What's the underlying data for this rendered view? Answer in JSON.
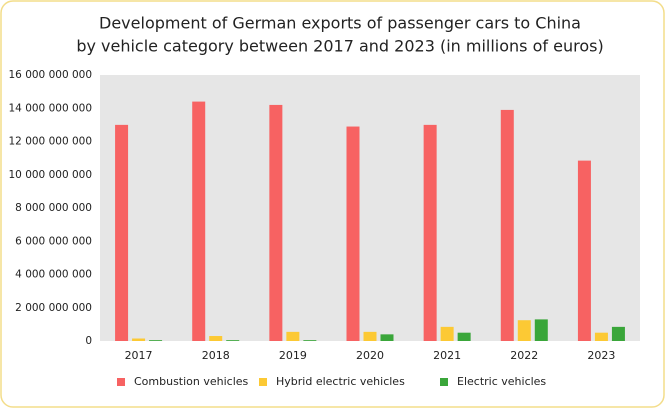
{
  "chart_data": {
    "type": "bar",
    "title": [
      "Development of German exports of passenger cars to China",
      "by vehicle category between 2017 and 2023 (in millions of euros)"
    ],
    "categories": [
      "2017",
      "2018",
      "2019",
      "2020",
      "2021",
      "2022",
      "2023"
    ],
    "series": [
      {
        "name": "Combustion vehicles",
        "color": "#f76262",
        "values": [
          13000000000,
          14400000000,
          14200000000,
          12900000000,
          13000000000,
          13900000000,
          10850000000
        ]
      },
      {
        "name": "Hybrid electric vehicles",
        "color": "#fcc934",
        "values": [
          150000000,
          300000000,
          550000000,
          550000000,
          850000000,
          1250000000,
          500000000
        ]
      },
      {
        "name": "Electric vehicles",
        "color": "#3aa63a",
        "values": [
          50000000,
          50000000,
          50000000,
          400000000,
          500000000,
          1300000000,
          850000000
        ]
      }
    ],
    "ylim": [
      0,
      16000000000
    ],
    "yticks": [
      {
        "value": 0,
        "label": "0"
      },
      {
        "value": 2000000000,
        "label": "2 000 000 000"
      },
      {
        "value": 4000000000,
        "label": "4 000 000 000"
      },
      {
        "value": 6000000000,
        "label": "6 000 000 000"
      },
      {
        "value": 8000000000,
        "label": "8 000 000 000"
      },
      {
        "value": 10000000000,
        "label": "10 000 000 000"
      },
      {
        "value": 12000000000,
        "label": "12 000 000 000"
      },
      {
        "value": 14000000000,
        "label": "14 000 000 000"
      },
      {
        "value": 16000000000,
        "label": "16 000 000 000"
      }
    ],
    "grid": false,
    "legend": "bottom"
  }
}
